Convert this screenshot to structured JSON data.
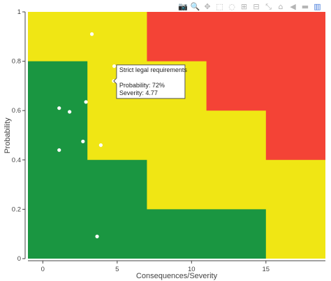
{
  "modebar": {
    "buttons": [
      {
        "name": "camera-icon",
        "glyph": "📷"
      },
      {
        "name": "zoom-icon",
        "glyph": "🔍"
      },
      {
        "name": "pan-icon",
        "glyph": "✥"
      },
      {
        "name": "box-select-icon",
        "glyph": "⬚"
      },
      {
        "name": "lasso-select-icon",
        "glyph": "◌"
      },
      {
        "name": "zoom-in-icon",
        "glyph": "⊞"
      },
      {
        "name": "zoom-out-icon",
        "glyph": "⊟"
      },
      {
        "name": "autoscale-icon",
        "glyph": "⤡"
      },
      {
        "name": "home-icon",
        "glyph": "⌂"
      },
      {
        "name": "spike-lines-icon",
        "glyph": "◀"
      },
      {
        "name": "hover-compare-icon",
        "glyph": "▬"
      },
      {
        "name": "plotly-logo-icon",
        "glyph": "▥"
      }
    ]
  },
  "chart_data": {
    "type": "scatter",
    "xlabel": "Consequences/Severity",
    "ylabel": "Probability",
    "xlim": [
      -1,
      19
    ],
    "ylim": [
      0,
      1
    ],
    "x_ticks": [
      0,
      5,
      10,
      15
    ],
    "y_ticks": [
      0,
      0.2,
      0.4,
      0.6,
      0.8,
      1
    ],
    "grid": false,
    "zones": {
      "colors": {
        "green": "#1a9641",
        "yellow": "#f0e614",
        "red": "#f44336"
      },
      "green_polygon": [
        [
          -1,
          0
        ],
        [
          15,
          0
        ],
        [
          15,
          0.2
        ],
        [
          7,
          0.2
        ],
        [
          7,
          0.4
        ],
        [
          3,
          0.4
        ],
        [
          3,
          0.8
        ],
        [
          -1,
          0.8
        ]
      ],
      "red_polygon": [
        [
          7,
          1
        ],
        [
          19,
          1
        ],
        [
          19,
          0.4
        ],
        [
          15,
          0.4
        ],
        [
          15,
          0.6
        ],
        [
          11,
          0.6
        ],
        [
          11,
          0.8
        ],
        [
          7,
          0.8
        ]
      ]
    },
    "points": [
      {
        "x": 3.3,
        "y": 0.91
      },
      {
        "x": 4.8,
        "y": 0.78
      },
      {
        "x": 4.77,
        "y": 0.72
      },
      {
        "x": 2.9,
        "y": 0.635
      },
      {
        "x": 1.1,
        "y": 0.61
      },
      {
        "x": 1.8,
        "y": 0.595
      },
      {
        "x": 2.7,
        "y": 0.475
      },
      {
        "x": 3.9,
        "y": 0.46
      },
      {
        "x": 1.1,
        "y": 0.44
      },
      {
        "x": 3.65,
        "y": 0.09
      }
    ],
    "point_color": "#ffffff",
    "tooltip": {
      "title": "Strict legal requirements",
      "line1": "Probability: 72%",
      "line2": "Severity: 4.77",
      "anchor": {
        "x": 4.77,
        "y": 0.72
      }
    }
  }
}
